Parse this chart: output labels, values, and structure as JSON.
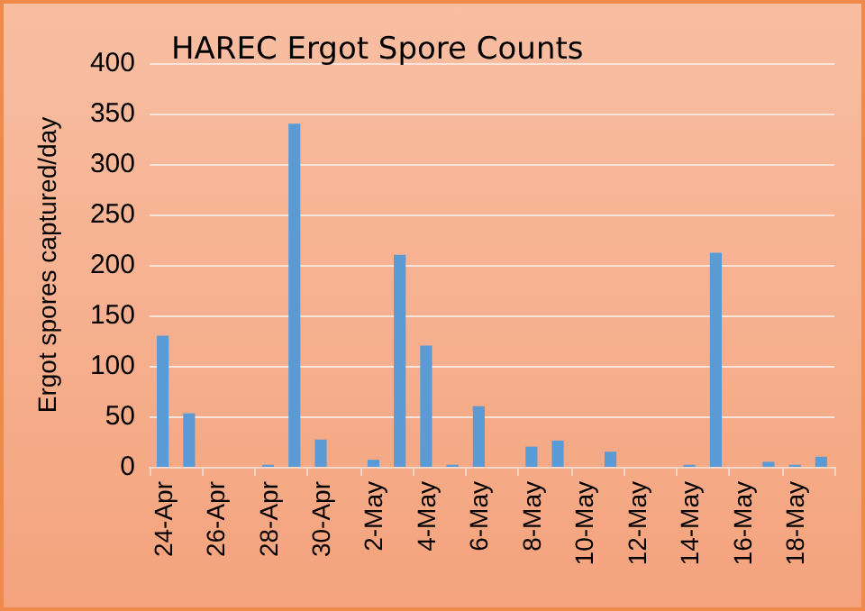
{
  "chart_data": {
    "type": "bar",
    "title": "HAREC Ergot Spore Counts",
    "ylabel": "Ergot spores captured/day",
    "categories": [
      "24-Apr",
      null,
      "26-Apr",
      null,
      "28-Apr",
      null,
      "30-Apr",
      null,
      "2-May",
      null,
      "4-May",
      null,
      "6-May",
      null,
      "8-May",
      null,
      "10-May",
      null,
      "12-May",
      null,
      "14-May",
      null,
      "16-May",
      null,
      "18-May",
      null
    ],
    "values": [
      130,
      53,
      0,
      0,
      2,
      340,
      27,
      0,
      7,
      210,
      120,
      2,
      60,
      0,
      20,
      26,
      0,
      15,
      0,
      0,
      2,
      212,
      0,
      5,
      2,
      10
    ],
    "color": "#5b9bd5",
    "ylim": [
      0,
      400
    ],
    "yticks": [
      0,
      50,
      100,
      150,
      200,
      250,
      300,
      350,
      400
    ],
    "grid": "y"
  }
}
